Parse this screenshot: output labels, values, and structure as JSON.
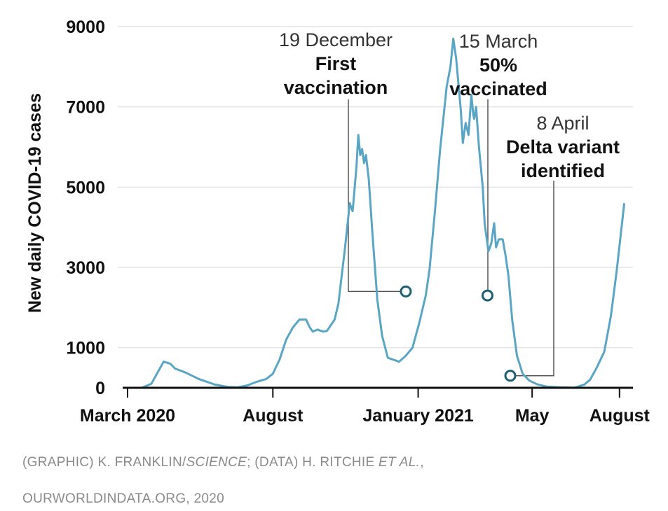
{
  "chart_data": {
    "type": "line",
    "title": "",
    "ylabel": "New daily COVID-19 cases",
    "xlabel": "",
    "ylim": [
      0,
      9000
    ],
    "yticks": [
      0,
      1000,
      3000,
      5000,
      7000,
      9000
    ],
    "grid": true,
    "line_color": "#5aa5c4",
    "marker_color": "#1b5f73",
    "x_ticks": [
      {
        "label": "March 2020",
        "date": "2020-03"
      },
      {
        "label": "August",
        "date": "2020-08"
      },
      {
        "label": "January 2021",
        "date": "2021-01"
      },
      {
        "label": "May",
        "date": "2021-05"
      },
      {
        "label": "August",
        "date": "2021-08"
      }
    ],
    "series": [
      {
        "points": [
          [
            "2020-03-01",
            0
          ],
          [
            "2020-03-16",
            0
          ],
          [
            "2020-03-26",
            100
          ],
          [
            "2020-04-02",
            400
          ],
          [
            "2020-04-08",
            650
          ],
          [
            "2020-04-15",
            600
          ],
          [
            "2020-04-20",
            480
          ],
          [
            "2020-05-01",
            380
          ],
          [
            "2020-05-15",
            220
          ],
          [
            "2020-06-01",
            80
          ],
          [
            "2020-06-15",
            20
          ],
          [
            "2020-06-25",
            10
          ],
          [
            "2020-07-05",
            60
          ],
          [
            "2020-07-15",
            150
          ],
          [
            "2020-07-25",
            220
          ],
          [
            "2020-08-01",
            350
          ],
          [
            "2020-08-08",
            700
          ],
          [
            "2020-08-15",
            1200
          ],
          [
            "2020-08-22",
            1500
          ],
          [
            "2020-08-29",
            1700
          ],
          [
            "2020-09-05",
            1700
          ],
          [
            "2020-09-09",
            1500
          ],
          [
            "2020-09-12",
            1400
          ],
          [
            "2020-09-17",
            1450
          ],
          [
            "2020-09-23",
            1400
          ],
          [
            "2020-09-27",
            1420
          ],
          [
            "2020-10-05",
            1700
          ],
          [
            "2020-10-09",
            2100
          ],
          [
            "2020-10-16",
            3500
          ],
          [
            "2020-10-21",
            4600
          ],
          [
            "2020-10-24",
            4400
          ],
          [
            "2020-10-28",
            5500
          ],
          [
            "2020-10-30",
            6300
          ],
          [
            "2020-11-01",
            5800
          ],
          [
            "2020-11-03",
            5950
          ],
          [
            "2020-11-05",
            5600
          ],
          [
            "2020-11-07",
            5800
          ],
          [
            "2020-11-10",
            5200
          ],
          [
            "2020-11-14",
            3800
          ],
          [
            "2020-11-19",
            2200
          ],
          [
            "2020-11-24",
            1300
          ],
          [
            "2020-11-30",
            750
          ],
          [
            "2020-12-06",
            700
          ],
          [
            "2020-12-12",
            650
          ],
          [
            "2020-12-19",
            800
          ],
          [
            "2020-12-26",
            1000
          ],
          [
            "2021-01-02",
            1600
          ],
          [
            "2021-01-09",
            2300
          ],
          [
            "2021-01-13",
            2950
          ],
          [
            "2021-01-19",
            4500
          ],
          [
            "2021-01-24",
            5900
          ],
          [
            "2021-01-31",
            7500
          ],
          [
            "2021-02-04",
            8000
          ],
          [
            "2021-02-07",
            8700
          ],
          [
            "2021-02-10",
            8200
          ],
          [
            "2021-02-15",
            6900
          ],
          [
            "2021-02-17",
            6100
          ],
          [
            "2021-02-20",
            6600
          ],
          [
            "2021-02-23",
            6300
          ],
          [
            "2021-02-26",
            7300
          ],
          [
            "2021-02-28",
            6800
          ],
          [
            "2021-03-01",
            6700
          ],
          [
            "2021-03-03",
            7000
          ],
          [
            "2021-03-06",
            6000
          ],
          [
            "2021-03-10",
            5000
          ],
          [
            "2021-03-12",
            4100
          ],
          [
            "2021-03-16",
            3400
          ],
          [
            "2021-03-19",
            3600
          ],
          [
            "2021-03-22",
            4100
          ],
          [
            "2021-03-24",
            3500
          ],
          [
            "2021-03-27",
            3700
          ],
          [
            "2021-03-31",
            3700
          ],
          [
            "2021-04-03",
            3300
          ],
          [
            "2021-04-06",
            2800
          ],
          [
            "2021-04-10",
            1700
          ],
          [
            "2021-04-15",
            800
          ],
          [
            "2021-04-21",
            350
          ],
          [
            "2021-04-28",
            180
          ],
          [
            "2021-05-06",
            90
          ],
          [
            "2021-05-16",
            30
          ],
          [
            "2021-05-31",
            10
          ],
          [
            "2021-06-15",
            5
          ],
          [
            "2021-06-25",
            80
          ],
          [
            "2021-07-01",
            200
          ],
          [
            "2021-07-08",
            500
          ],
          [
            "2021-07-16",
            900
          ],
          [
            "2021-07-23",
            1800
          ],
          [
            "2021-07-29",
            2900
          ],
          [
            "2021-08-06",
            4600
          ]
        ]
      }
    ],
    "annotations": [
      {
        "date_label": "19 December",
        "event": [
          "First",
          "vaccination"
        ],
        "x": "2020-12-19",
        "y": 2400
      },
      {
        "date_label": "15 March",
        "event": [
          "50%",
          "vaccinated"
        ],
        "x": "2021-03-15",
        "y": 2300
      },
      {
        "date_label": "8 April",
        "event": [
          "Delta variant",
          "identified"
        ],
        "x": "2021-04-08",
        "y": 300
      }
    ]
  },
  "credits": {
    "line1_a": "(GRAPHIC) K. FRANKLIN/",
    "line1_b": "SCIENCE",
    "line1_c": "; (DATA) H. RITCHIE ",
    "line1_d": "ET AL.",
    "line1_e": ",",
    "line2": "OURWORLDINDATA.ORG, 2020"
  }
}
